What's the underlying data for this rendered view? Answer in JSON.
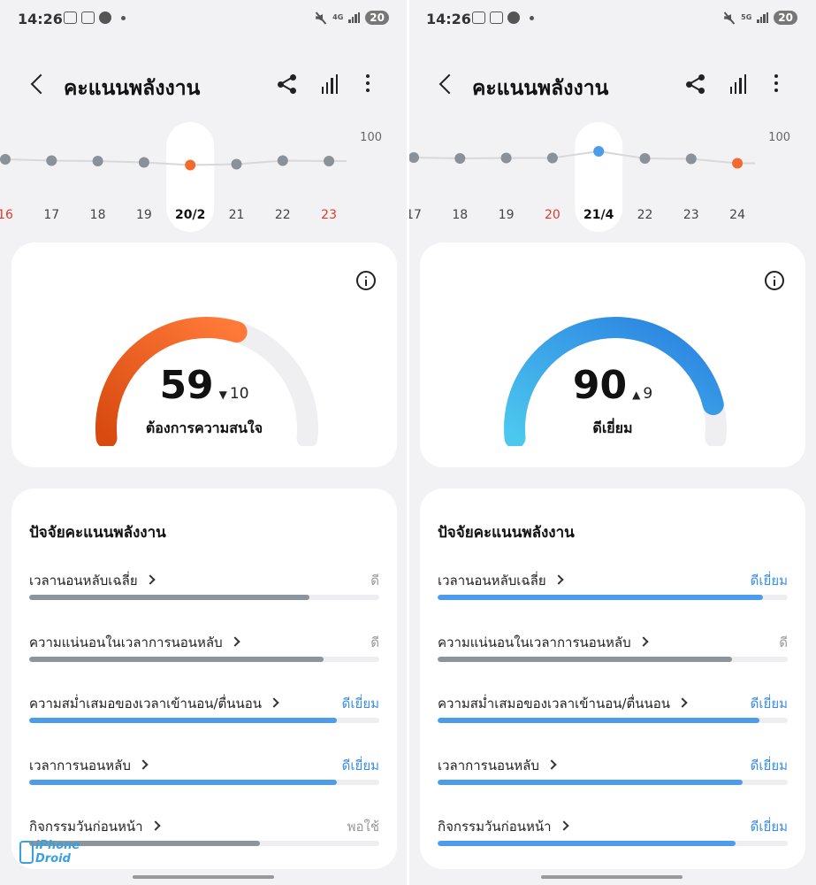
{
  "screens": [
    {
      "status": {
        "time": "14:26",
        "network": "4G",
        "battery": "20"
      },
      "title": "คะแนนพลังงาน",
      "trend": {
        "scale_label": "100",
        "days": [
          "16",
          "17",
          "18",
          "19",
          "20/2",
          "21",
          "22",
          "23"
        ],
        "red_days": [
          0,
          7
        ],
        "selected_index": 4,
        "scores": [
          72,
          69,
          68,
          65,
          59,
          61,
          69,
          68
        ],
        "selected_color": "#f26a2e"
      },
      "score": {
        "value": "59",
        "delta": "10",
        "direction": "down",
        "state": "ต้องการความสนใจ",
        "percent": 59,
        "color_start": "#d84a10",
        "color_end": "#ff7a38"
      },
      "factors_title": "ปัจจัยคะแนนพลังงาน",
      "factors": [
        {
          "label": "เวลานอนหลับเฉลี่ย",
          "value": "ดี",
          "level": 80,
          "blue": false
        },
        {
          "label": "ความแน่นอนในเวลาการนอนหลับ",
          "value": "ดี",
          "level": 84,
          "blue": false
        },
        {
          "label": "ความสม่ำเสมอของเวลาเข้านอน/ตื่นนอน",
          "value": "ดีเยี่ยม",
          "level": 88,
          "blue": true
        },
        {
          "label": "เวลาการนอนหลับ",
          "value": "ดีเยี่ยม",
          "level": 88,
          "blue": true
        },
        {
          "label": "กิจกรรมวันก่อนหน้า",
          "value": "พอใช้",
          "level": 66,
          "blue": false
        }
      ]
    },
    {
      "status": {
        "time": "14:26",
        "network": "5G",
        "battery": "20"
      },
      "title": "คะแนนพลังงาน",
      "trend": {
        "scale_label": "100",
        "days": [
          "17",
          "18",
          "19",
          "20",
          "21/4",
          "22",
          "23",
          "24"
        ],
        "red_days": [
          3
        ],
        "selected_index": 4,
        "scores": [
          76,
          74,
          75,
          75,
          90,
          74,
          73,
          63
        ],
        "selected_color": "#4d9cec",
        "last_color": "#f26a2e"
      },
      "score": {
        "value": "90",
        "delta": "9",
        "direction": "up",
        "state": "ดีเยี่ยม",
        "percent": 90,
        "color_start": "#4cc8ef",
        "color_end": "#2a7fe0"
      },
      "factors_title": "ปัจจัยคะแนนพลังงาน",
      "factors": [
        {
          "label": "เวลานอนหลับเฉลี่ย",
          "value": "ดีเยี่ยม",
          "level": 93,
          "blue": true
        },
        {
          "label": "ความแน่นอนในเวลาการนอนหลับ",
          "value": "ดี",
          "level": 84,
          "blue": false
        },
        {
          "label": "ความสม่ำเสมอของเวลาเข้านอน/ตื่นนอน",
          "value": "ดีเยี่ยม",
          "level": 92,
          "blue": true
        },
        {
          "label": "เวลาการนอนหลับ",
          "value": "ดีเยี่ยม",
          "level": 87,
          "blue": true
        },
        {
          "label": "กิจกรรมวันก่อนหน้า",
          "value": "ดีเยี่ยม",
          "level": 85,
          "blue": true
        }
      ]
    }
  ],
  "watermark": {
    "line1": "iPhone",
    "line2": "Droid"
  }
}
